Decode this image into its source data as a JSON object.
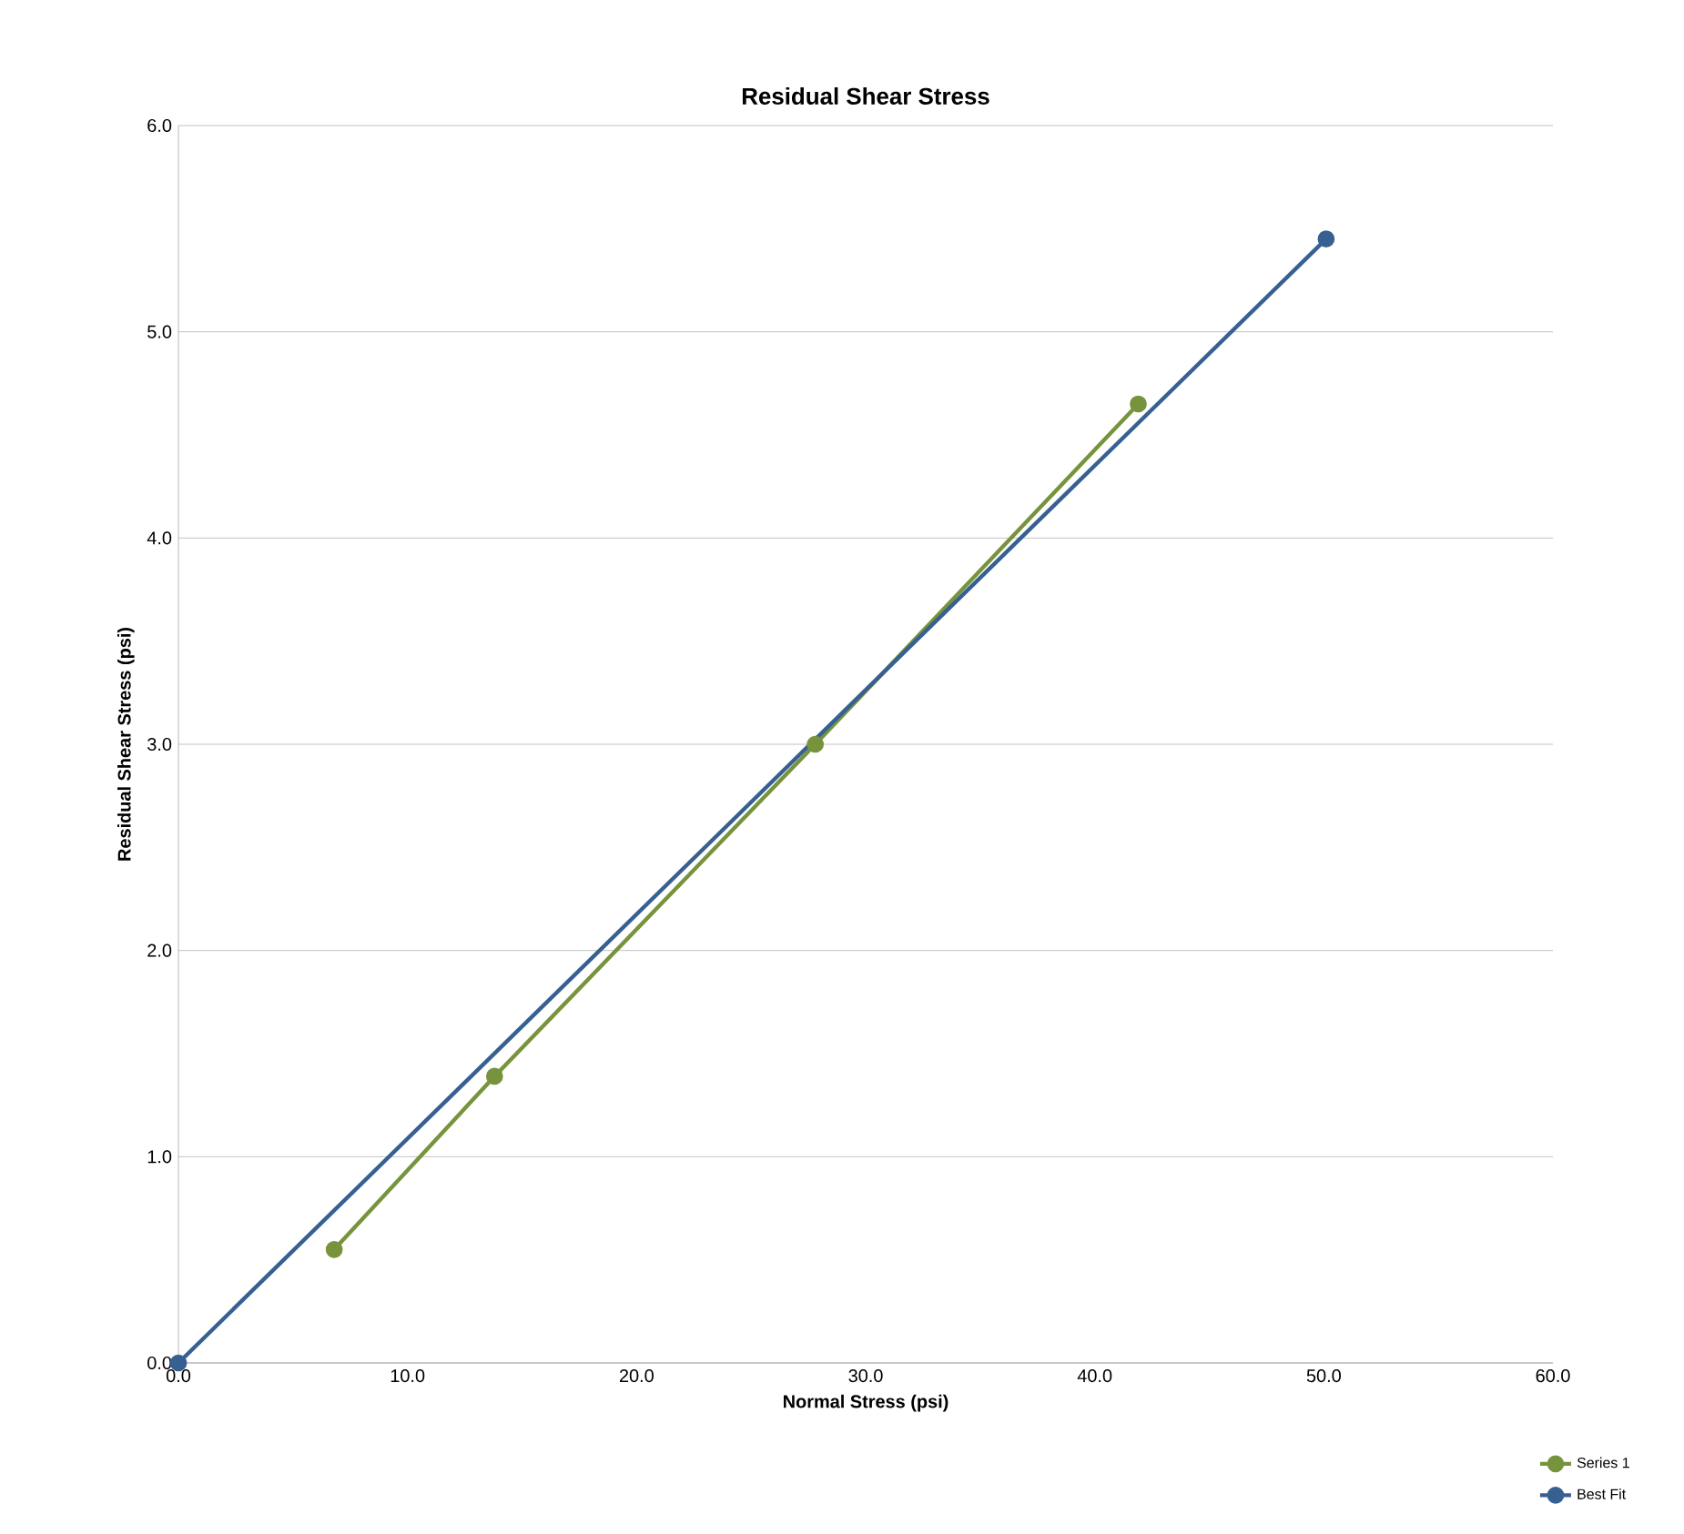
{
  "chart_data": {
    "type": "line",
    "title": "Residual Shear Stress",
    "xlabel": "Normal Stress (psi)",
    "ylabel": "Residual Shear Stress (psi)",
    "xlim": [
      0,
      60
    ],
    "ylim": [
      0,
      6
    ],
    "xticks": [
      {
        "value": 0,
        "label": "0.0"
      },
      {
        "value": 10,
        "label": "10.0"
      },
      {
        "value": 20,
        "label": "20.0"
      },
      {
        "value": 30,
        "label": "30.0"
      },
      {
        "value": 40,
        "label": "40.0"
      },
      {
        "value": 50,
        "label": "50.0"
      },
      {
        "value": 60,
        "label": "60.0"
      }
    ],
    "yticks": [
      {
        "value": 0,
        "label": "0.0"
      },
      {
        "value": 1,
        "label": "1.0"
      },
      {
        "value": 2,
        "label": "2.0"
      },
      {
        "value": 3,
        "label": "3.0"
      },
      {
        "value": 4,
        "label": "4.0"
      },
      {
        "value": 5,
        "label": "5.0"
      },
      {
        "value": 6,
        "label": "6.0"
      }
    ],
    "grid": "y",
    "legend": "bottom right",
    "marker": "circle",
    "line_style": "solid",
    "series": [
      {
        "name": "Series 1",
        "color": "#77933c",
        "x": [
          6.8,
          13.8,
          27.8,
          41.9
        ],
        "values": [
          0.55,
          1.39,
          3.0,
          4.65
        ]
      },
      {
        "name": "Best Fit",
        "color": "#376092",
        "x": [
          0,
          50.1
        ],
        "values": [
          0,
          5.45
        ]
      }
    ]
  }
}
